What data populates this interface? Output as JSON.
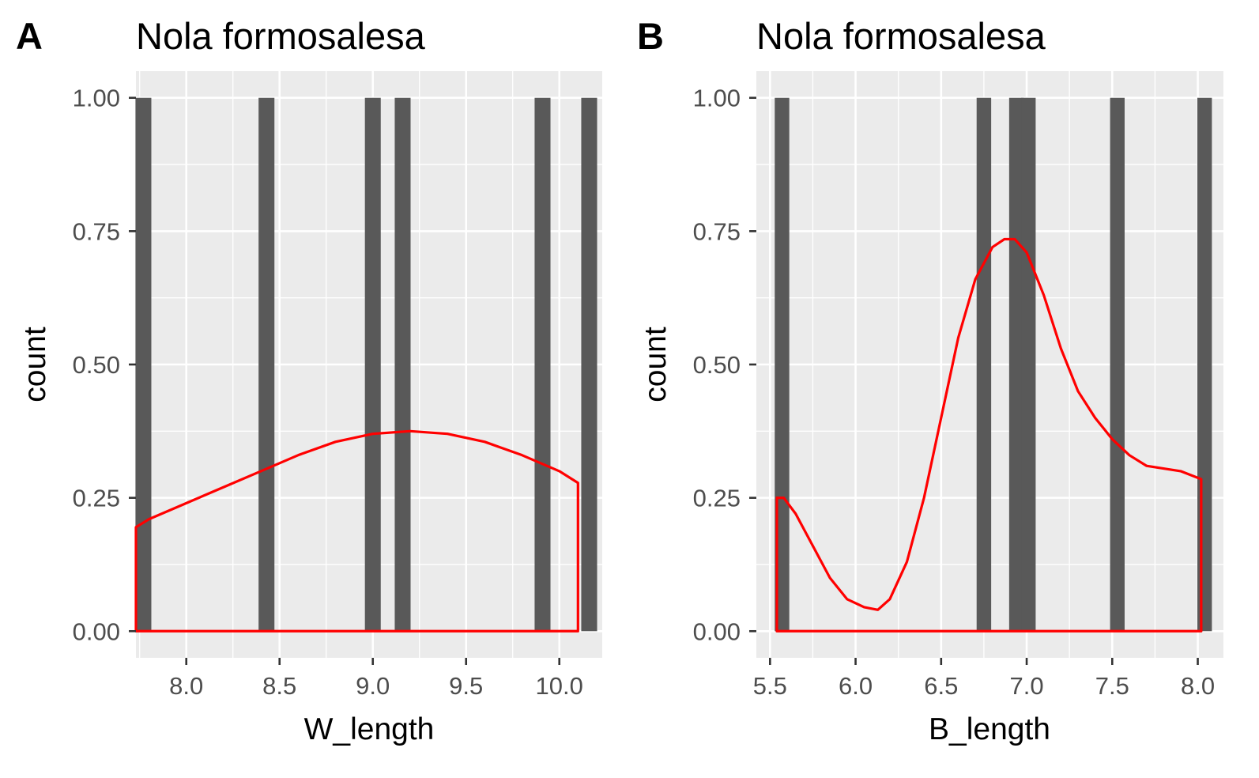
{
  "chart_data": [
    {
      "type": "bar",
      "tag": "A",
      "title": "Nola formosalesa",
      "xlabel": "W_length",
      "ylabel": "count",
      "xlim": [
        7.73,
        10.23
      ],
      "ylim": [
        -0.05,
        1.05
      ],
      "xticks": [
        8.0,
        8.5,
        9.0,
        9.5,
        10.0
      ],
      "xtick_labels": [
        "8.0",
        "8.5",
        "9.0",
        "9.5",
        "10.0"
      ],
      "yticks": [
        0.0,
        0.25,
        0.5,
        0.75,
        1.0
      ],
      "ytick_labels": [
        "0.00",
        "0.25",
        "0.50",
        "0.75",
        "1.00"
      ],
      "bar_width": 0.085,
      "bars": [
        {
          "x": 7.77,
          "count": 1
        },
        {
          "x": 8.43,
          "count": 1
        },
        {
          "x": 9.0,
          "count": 1
        },
        {
          "x": 9.16,
          "count": 1
        },
        {
          "x": 9.91,
          "count": 1
        },
        {
          "x": 10.16,
          "count": 1
        }
      ],
      "density": {
        "x": [
          7.73,
          7.8,
          8.0,
          8.2,
          8.4,
          8.6,
          8.8,
          9.0,
          9.2,
          9.4,
          9.6,
          9.8,
          10.0,
          10.1
        ],
        "y": [
          0.195,
          0.21,
          0.24,
          0.27,
          0.3,
          0.33,
          0.355,
          0.37,
          0.375,
          0.37,
          0.355,
          0.33,
          0.3,
          0.278
        ]
      },
      "grid": true,
      "bar_color": "#595959",
      "density_color": "#ff0000",
      "panel_background": "#ebebeb"
    },
    {
      "type": "bar",
      "tag": "B",
      "title": "Nola formosalesa",
      "xlabel": "B_length",
      "ylabel": "count",
      "xlim": [
        5.42,
        8.15
      ],
      "ylim": [
        -0.05,
        1.05
      ],
      "xticks": [
        5.5,
        6.0,
        6.5,
        7.0,
        7.5,
        8.0
      ],
      "xtick_labels": [
        "5.5",
        "6.0",
        "6.5",
        "7.0",
        "7.5",
        "8.0"
      ],
      "yticks": [
        0.0,
        0.25,
        0.5,
        0.75,
        1.0
      ],
      "ytick_labels": [
        "0.00",
        "0.25",
        "0.50",
        "0.75",
        "1.00"
      ],
      "bar_width": 0.085,
      "bars": [
        {
          "x": 5.57,
          "count": 1
        },
        {
          "x": 6.75,
          "count": 1
        },
        {
          "x": 6.94,
          "count": 1
        },
        {
          "x": 7.01,
          "count": 1
        },
        {
          "x": 7.53,
          "count": 1
        },
        {
          "x": 8.04,
          "count": 1
        }
      ],
      "density": {
        "x": [
          5.54,
          5.54,
          5.58,
          5.65,
          5.75,
          5.85,
          5.95,
          6.05,
          6.13,
          6.2,
          6.3,
          6.4,
          6.5,
          6.6,
          6.7,
          6.8,
          6.87,
          6.93,
          7.0,
          7.1,
          7.2,
          7.3,
          7.4,
          7.5,
          7.6,
          7.7,
          7.8,
          7.9,
          8.02
        ],
        "y": [
          0.0,
          0.25,
          0.25,
          0.22,
          0.16,
          0.1,
          0.06,
          0.045,
          0.04,
          0.06,
          0.13,
          0.25,
          0.4,
          0.55,
          0.66,
          0.72,
          0.735,
          0.735,
          0.71,
          0.63,
          0.53,
          0.45,
          0.4,
          0.36,
          0.33,
          0.31,
          0.305,
          0.3,
          0.285
        ]
      },
      "grid": true,
      "bar_color": "#595959",
      "density_color": "#ff0000",
      "panel_background": "#ebebeb"
    }
  ]
}
